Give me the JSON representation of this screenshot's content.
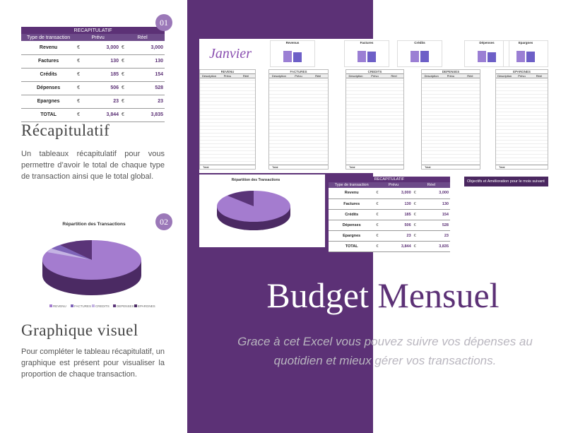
{
  "recap": {
    "title": "RECAPITULATIF",
    "headers": [
      "Type de transaction",
      "Prévu",
      "Réel"
    ],
    "currency": "€",
    "rows": [
      [
        "Revenu",
        "3,000",
        "3,000"
      ],
      [
        "Factures",
        "130",
        "130"
      ],
      [
        "Crédits",
        "185",
        "154"
      ],
      [
        "Dépenses",
        "506",
        "528"
      ],
      [
        "Epargnes",
        "23",
        "23"
      ]
    ],
    "total": [
      "TOTAL",
      "3,844",
      "3,835"
    ]
  },
  "sections": [
    {
      "badge": "01",
      "heading": "Récapitulatif",
      "text": "Un tableaux récapitulatif pour vous permettre d’avoir le total de chaque type de transaction ainsi que le total global."
    },
    {
      "badge": "02",
      "heading": "Graphique visuel",
      "text": "Pour compléter le tableau récapitulatif, un graphique est présent pour visualiser la proportion de chaque transaction."
    }
  ],
  "pie_chart": {
    "title": "Répartition des Transactions",
    "legend": [
      "REVENU",
      "FACTURES",
      "CREDITS",
      "DEPENSES",
      "EPARGNES"
    ]
  },
  "preview": {
    "month": "Janvier",
    "charts": [
      "Revenus",
      "Factures",
      "Crédits",
      "Dépenses",
      "Epargnes"
    ],
    "tables": [
      "REVENU",
      "FACTURES",
      "CREDITS",
      "DEPENSES",
      "EPARGNES"
    ],
    "columns": [
      "Description",
      "Prévu",
      "Réel"
    ],
    "total_label": "Total",
    "objectives": "Objectifs et Amélioration pour le mois suivant"
  },
  "hero": {
    "title": "Budget Mensuel",
    "subtitle": "Grace à cet Excel vous pouvez suivre vos dépenses au quotidien et mieux gérer vos transactions."
  }
}
